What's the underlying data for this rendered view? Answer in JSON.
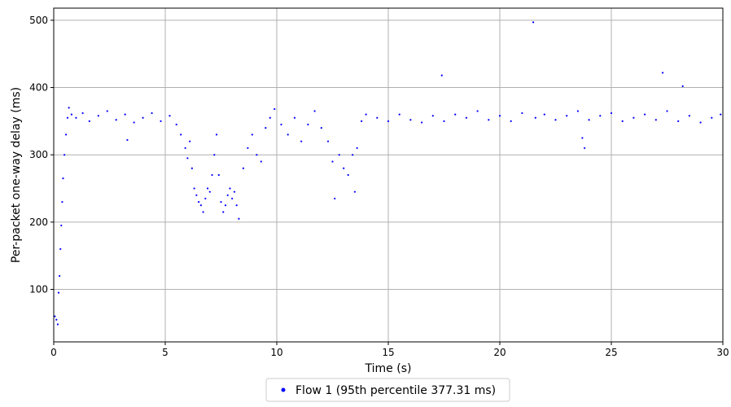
{
  "chart_data": {
    "type": "scatter",
    "title": "",
    "xlabel": "Time (s)",
    "ylabel": "Per-packet one-way delay (ms)",
    "xlim": [
      0,
      30
    ],
    "ylim": [
      22,
      518
    ],
    "xticks": [
      0,
      5,
      10,
      15,
      20,
      25,
      30
    ],
    "yticks": [
      100,
      200,
      300,
      400,
      500
    ],
    "grid": true,
    "legend": {
      "position": "below-center",
      "entries": [
        "Flow 1 (95th percentile 377.31 ms)"
      ]
    },
    "series": [
      {
        "name": "Flow 1 (95th percentile 377.31 ms)",
        "color": "#0000ff",
        "marker": "dot",
        "points": [
          [
            0.05,
            60
          ],
          [
            0.12,
            55
          ],
          [
            0.18,
            48
          ],
          [
            0.22,
            95
          ],
          [
            0.26,
            120
          ],
          [
            0.3,
            160
          ],
          [
            0.34,
            195
          ],
          [
            0.38,
            230
          ],
          [
            0.42,
            265
          ],
          [
            0.48,
            300
          ],
          [
            0.55,
            330
          ],
          [
            0.62,
            355
          ],
          [
            0.68,
            370
          ],
          [
            0.8,
            360
          ],
          [
            1.0,
            355
          ],
          [
            1.3,
            362
          ],
          [
            1.6,
            350
          ],
          [
            2.0,
            358
          ],
          [
            2.4,
            365
          ],
          [
            2.8,
            352
          ],
          [
            3.2,
            360
          ],
          [
            3.3,
            322
          ],
          [
            3.6,
            348
          ],
          [
            4.0,
            355
          ],
          [
            4.4,
            362
          ],
          [
            4.8,
            350
          ],
          [
            5.2,
            358
          ],
          [
            5.5,
            345
          ],
          [
            5.7,
            330
          ],
          [
            5.9,
            310
          ],
          [
            6.0,
            295
          ],
          [
            6.1,
            320
          ],
          [
            6.2,
            280
          ],
          [
            6.3,
            250
          ],
          [
            6.4,
            240
          ],
          [
            6.5,
            230
          ],
          [
            6.6,
            225
          ],
          [
            6.7,
            215
          ],
          [
            6.8,
            235
          ],
          [
            6.9,
            250
          ],
          [
            7.0,
            245
          ],
          [
            7.1,
            270
          ],
          [
            7.2,
            300
          ],
          [
            7.3,
            330
          ],
          [
            7.4,
            270
          ],
          [
            7.5,
            230
          ],
          [
            7.6,
            215
          ],
          [
            7.7,
            225
          ],
          [
            7.8,
            240
          ],
          [
            7.9,
            250
          ],
          [
            8.0,
            235
          ],
          [
            8.1,
            245
          ],
          [
            8.2,
            225
          ],
          [
            8.3,
            205
          ],
          [
            8.5,
            280
          ],
          [
            8.7,
            310
          ],
          [
            8.9,
            330
          ],
          [
            9.1,
            300
          ],
          [
            9.3,
            290
          ],
          [
            9.5,
            340
          ],
          [
            9.7,
            355
          ],
          [
            9.9,
            368
          ],
          [
            10.2,
            345
          ],
          [
            10.5,
            330
          ],
          [
            10.8,
            355
          ],
          [
            11.1,
            320
          ],
          [
            11.4,
            345
          ],
          [
            11.7,
            365
          ],
          [
            12.0,
            340
          ],
          [
            12.3,
            320
          ],
          [
            12.5,
            290
          ],
          [
            12.6,
            235
          ],
          [
            12.8,
            300
          ],
          [
            13.0,
            280
          ],
          [
            13.2,
            270
          ],
          [
            13.4,
            300
          ],
          [
            13.5,
            245
          ],
          [
            13.6,
            310
          ],
          [
            13.8,
            350
          ],
          [
            14.0,
            360
          ],
          [
            14.5,
            355
          ],
          [
            15.0,
            350
          ],
          [
            15.5,
            360
          ],
          [
            16.0,
            352
          ],
          [
            16.5,
            348
          ],
          [
            17.0,
            358
          ],
          [
            17.4,
            418
          ],
          [
            17.5,
            350
          ],
          [
            18.0,
            360
          ],
          [
            18.5,
            355
          ],
          [
            19.0,
            365
          ],
          [
            19.5,
            352
          ],
          [
            20.0,
            358
          ],
          [
            20.5,
            350
          ],
          [
            21.0,
            362
          ],
          [
            21.5,
            497
          ],
          [
            21.6,
            355
          ],
          [
            22.0,
            360
          ],
          [
            22.5,
            352
          ],
          [
            23.0,
            358
          ],
          [
            23.5,
            365
          ],
          [
            23.7,
            325
          ],
          [
            23.8,
            310
          ],
          [
            24.0,
            352
          ],
          [
            24.5,
            358
          ],
          [
            25.0,
            362
          ],
          [
            25.5,
            350
          ],
          [
            26.0,
            355
          ],
          [
            26.5,
            360
          ],
          [
            27.0,
            352
          ],
          [
            27.3,
            422
          ],
          [
            27.5,
            365
          ],
          [
            28.0,
            350
          ],
          [
            28.2,
            402
          ],
          [
            28.5,
            358
          ],
          [
            29.0,
            348
          ],
          [
            29.5,
            355
          ],
          [
            29.9,
            360
          ]
        ]
      }
    ]
  }
}
